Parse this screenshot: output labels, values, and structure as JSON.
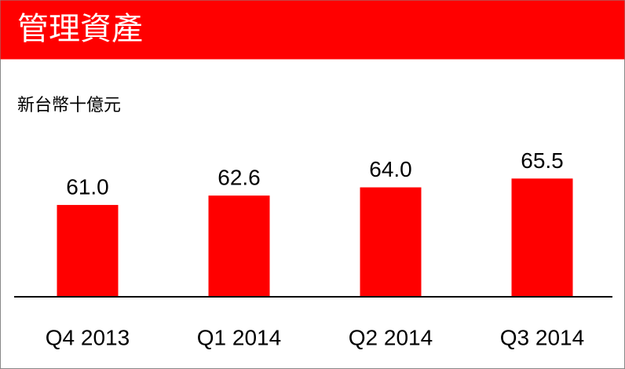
{
  "chart_data": {
    "type": "bar",
    "title": "管理資產",
    "subtitle": "新台幣十億元",
    "categories": [
      "Q4 2013",
      "Q1 2014",
      "Q2 2014",
      "Q3 2014"
    ],
    "values": [
      61.0,
      62.6,
      64.0,
      65.5
    ],
    "value_labels": [
      "61.0",
      "62.6",
      "64.0",
      "65.5"
    ],
    "color": "#ff0000",
    "ylim": [
      45.5,
      70.5
    ]
  }
}
